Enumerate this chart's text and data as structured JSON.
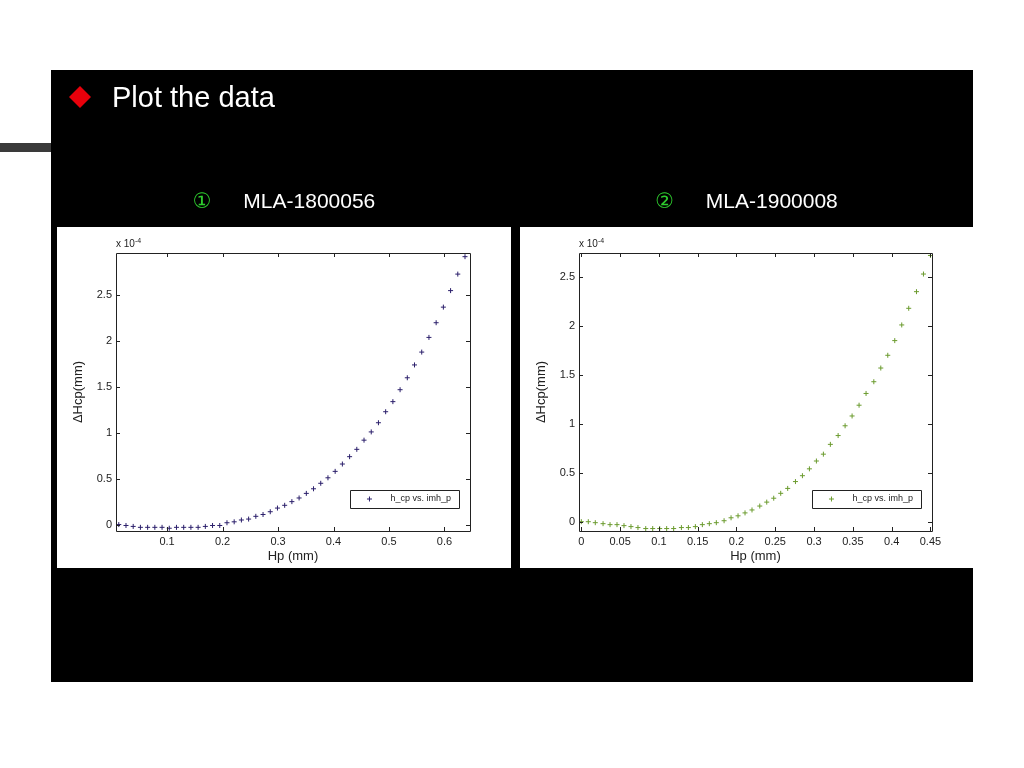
{
  "chart_data": [
    {
      "type": "scatter",
      "title": "① MLA-1800056",
      "xlabel": "Hp (mm)",
      "ylabel": "ΔHcp(mm)",
      "annotations": [
        "Plot the data",
        "x 10$^{-4}$"
      ],
      "x": [
        0.013,
        0.026,
        0.039,
        0.052,
        0.065,
        0.078,
        0.091,
        0.104,
        0.117,
        0.13,
        0.143,
        0.156,
        0.169,
        0.182,
        0.195,
        0.208,
        0.221,
        0.234,
        0.247,
        0.26,
        0.273,
        0.286,
        0.299,
        0.312,
        0.325,
        0.338,
        0.351,
        0.364,
        0.377,
        0.39,
        0.403,
        0.416,
        0.429,
        0.442,
        0.455,
        0.468,
        0.481,
        0.494,
        0.507,
        0.52,
        0.533,
        0.546,
        0.559,
        0.572,
        0.585,
        0.598,
        0.611,
        0.624,
        0.637
      ],
      "series": [
        {
          "name": "h_cp vs. imh_p",
          "color": "#2b1f6b",
          "values": [
            0,
            -0.01,
            -0.02,
            -0.03,
            -0.03,
            -0.03,
            -0.03,
            -0.04,
            -0.03,
            -0.03,
            -0.03,
            -0.03,
            -0.02,
            -0.01,
            -0.01,
            0.02,
            0.03,
            0.05,
            0.06,
            0.09,
            0.11,
            0.14,
            0.18,
            0.21,
            0.25,
            0.29,
            0.34,
            0.39,
            0.45,
            0.51,
            0.58,
            0.66,
            0.74,
            0.82,
            0.92,
            1.01,
            1.11,
            1.23,
            1.34,
            1.47,
            1.6,
            1.74,
            1.88,
            2.04,
            2.2,
            2.37,
            2.55,
            2.73,
            2.92
          ]
        }
      ],
      "xlim": [
        0.008,
        0.646
      ],
      "xticks": [
        0.1,
        0.2,
        0.3,
        0.4,
        0.5,
        0.6
      ],
      "ylim": [
        -0.07,
        2.96
      ],
      "yticks": [
        0,
        0.5,
        1,
        1.5,
        2,
        2.5
      ],
      "legend": "bottom right",
      "marker": "cross"
    },
    {
      "type": "scatter",
      "title": "② MLA-1900008",
      "xlabel": "Hp (mm)",
      "ylabel": "ΔHcp(mm)",
      "annotations": [
        "x 10$^{-4}$"
      ],
      "x": [
        0,
        0.009,
        0.018,
        0.028,
        0.037,
        0.046,
        0.055,
        0.064,
        0.073,
        0.083,
        0.092,
        0.101,
        0.11,
        0.119,
        0.129,
        0.138,
        0.147,
        0.156,
        0.165,
        0.174,
        0.184,
        0.193,
        0.202,
        0.211,
        0.22,
        0.23,
        0.239,
        0.248,
        0.257,
        0.266,
        0.276,
        0.285,
        0.294,
        0.303,
        0.312,
        0.321,
        0.331,
        0.34,
        0.349,
        0.358,
        0.367,
        0.377,
        0.386,
        0.395,
        0.404,
        0.413,
        0.422,
        0.432,
        0.441,
        0.45
      ],
      "series": [
        {
          "name": "h_cp vs. imh_p",
          "color": "#6b9b2e",
          "values": [
            0,
            0,
            -0.01,
            -0.02,
            -0.03,
            -0.03,
            -0.04,
            -0.05,
            -0.06,
            -0.07,
            -0.07,
            -0.07,
            -0.07,
            -0.07,
            -0.06,
            -0.06,
            -0.05,
            -0.03,
            -0.02,
            -0.01,
            0.01,
            0.04,
            0.06,
            0.09,
            0.12,
            0.16,
            0.2,
            0.24,
            0.29,
            0.34,
            0.41,
            0.47,
            0.54,
            0.62,
            0.69,
            0.79,
            0.88,
            0.98,
            1.08,
            1.19,
            1.31,
            1.43,
            1.57,
            1.7,
            1.85,
            2.01,
            2.18,
            2.35,
            2.53,
            2.72
          ]
        }
      ],
      "xlim": [
        -0.003,
        0.452
      ],
      "xticks": [
        0,
        0.05,
        0.1,
        0.15,
        0.2,
        0.25,
        0.3,
        0.35,
        0.4,
        0.45
      ],
      "ylim": [
        -0.095,
        2.745
      ],
      "yticks": [
        0,
        0.5,
        1,
        1.5,
        2,
        2.5
      ],
      "legend": "bottom right",
      "marker": "cross"
    }
  ]
}
